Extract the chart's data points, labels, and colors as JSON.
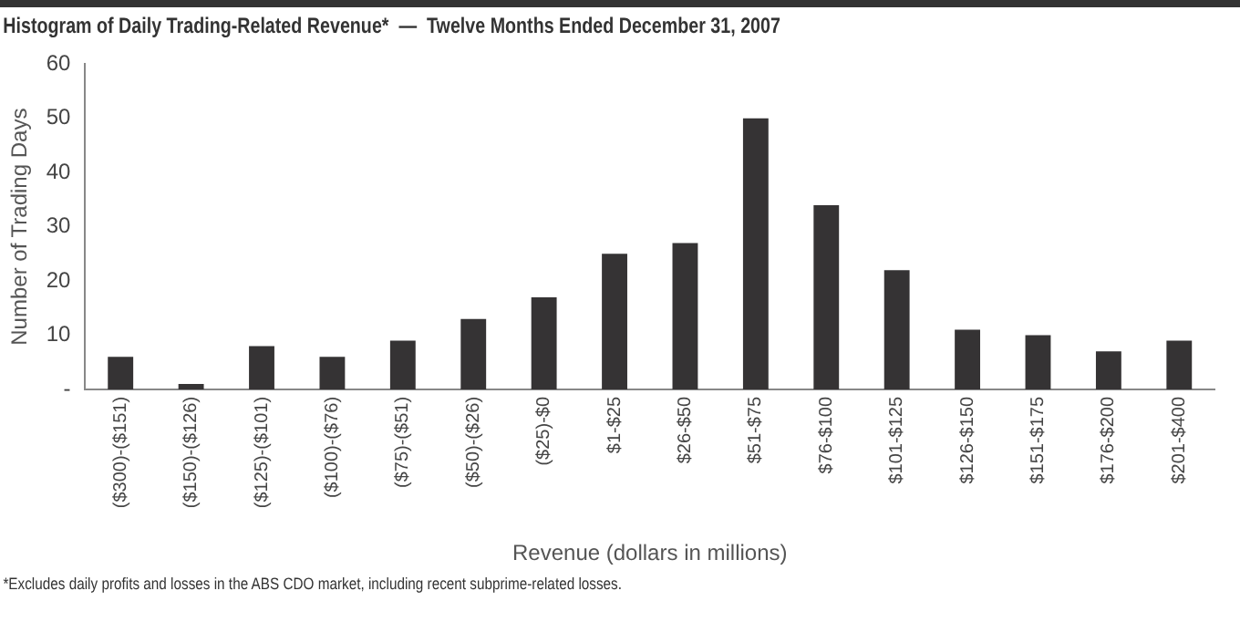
{
  "chart_data": {
    "type": "bar",
    "title": "Histogram of Daily Trading-Related Revenue*  —  Twelve Months Ended December 31, 2007",
    "categories": [
      "($300)-($151)",
      "($150)-($126)",
      "($125)-($101)",
      "($100)-($76)",
      "($75)-($51)",
      "($50)-($26)",
      "($25)-$0",
      "$1-$25",
      "$26-$50",
      "$51-$75",
      "$76-$100",
      "$101-$125",
      "$126-$150",
      "$151-$175",
      "$176-$200",
      "$201-$400"
    ],
    "values": [
      6,
      1,
      8,
      6,
      9,
      13,
      17,
      25,
      27,
      50,
      34,
      22,
      11,
      10,
      7,
      9
    ],
    "color": "#353334",
    "xlabel": "Revenue (dollars in millions)",
    "ylabel": "Number of Trading Days",
    "ylim": [
      0,
      60
    ],
    "yticks": [
      {
        "value": 0,
        "label": "-"
      },
      10,
      20,
      30,
      40,
      50,
      60
    ],
    "grid": false,
    "legend": false,
    "annotations": [
      "*Excludes daily profits and losses in the ABS CDO market, including recent subprime-related losses."
    ]
  }
}
